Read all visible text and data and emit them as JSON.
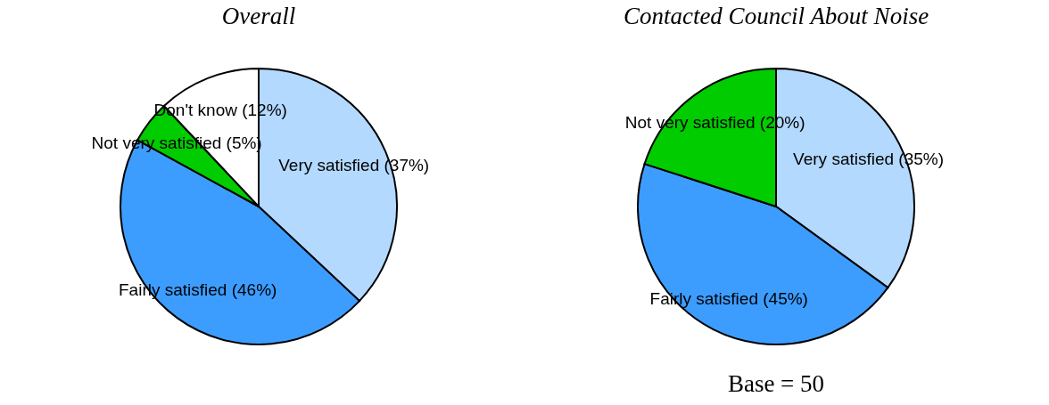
{
  "chart_data": [
    {
      "type": "pie",
      "title": "Overall",
      "categories": [
        "Very satisfied",
        "Fairly satisfied",
        "Not very satisfied",
        "Don't know"
      ],
      "values": [
        37,
        46,
        5,
        12
      ],
      "colors": [
        "#b3d9ff",
        "#3d9dff",
        "#00cc00",
        "#ffffff"
      ],
      "value_labels": [
        "(37%)",
        "(46%)",
        "(5%)",
        "(12%)"
      ],
      "legend": false
    },
    {
      "type": "pie",
      "title": "Contacted Council About Noise",
      "categories": [
        "Very satisfied",
        "Fairly satisfied",
        "Not very satisfied"
      ],
      "values": [
        35,
        45,
        20
      ],
      "colors": [
        "#b3d9ff",
        "#3d9dff",
        "#00cc00"
      ],
      "value_labels": [
        "(35%)",
        "(45%)",
        "(20%)"
      ],
      "legend": false,
      "annotations": [
        "Base = 50"
      ]
    }
  ]
}
